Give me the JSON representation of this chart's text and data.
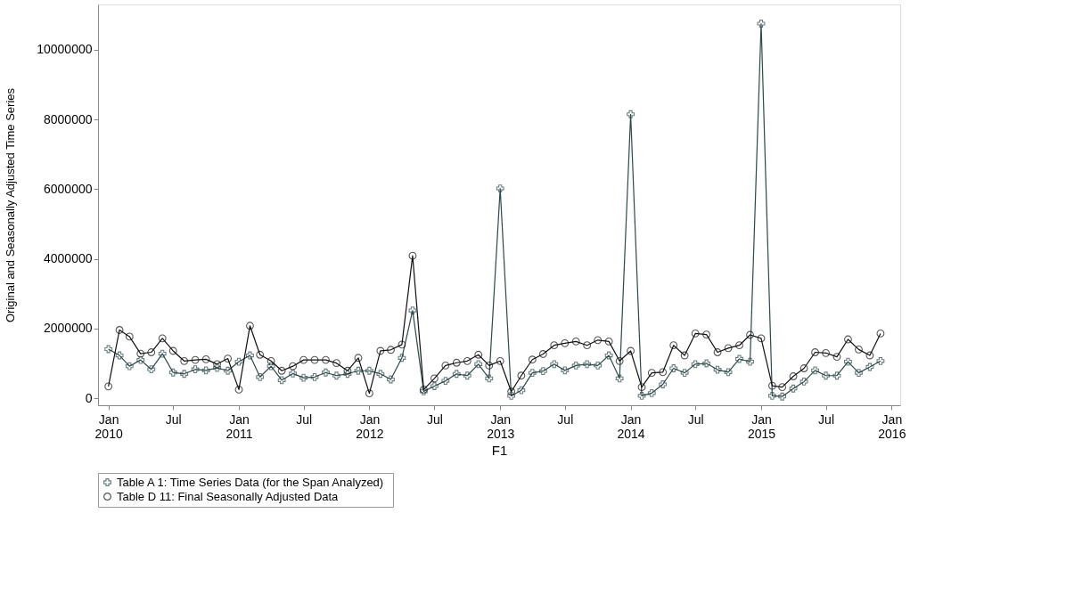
{
  "chart_data": {
    "type": "line",
    "xlabel": "F1",
    "ylabel": "Original and Seasonally Adjusted Time Series",
    "x": [
      "2010-01",
      "2010-02",
      "2010-03",
      "2010-04",
      "2010-05",
      "2010-06",
      "2010-07",
      "2010-08",
      "2010-09",
      "2010-10",
      "2010-11",
      "2010-12",
      "2011-01",
      "2011-02",
      "2011-03",
      "2011-04",
      "2011-05",
      "2011-06",
      "2011-07",
      "2011-08",
      "2011-09",
      "2011-10",
      "2011-11",
      "2011-12",
      "2012-01",
      "2012-02",
      "2012-03",
      "2012-04",
      "2012-05",
      "2012-06",
      "2012-07",
      "2012-08",
      "2012-09",
      "2012-10",
      "2012-11",
      "2012-12",
      "2013-01",
      "2013-02",
      "2013-03",
      "2013-04",
      "2013-05",
      "2013-06",
      "2013-07",
      "2013-08",
      "2013-09",
      "2013-10",
      "2013-11",
      "2013-12",
      "2014-01",
      "2014-02",
      "2014-03",
      "2014-04",
      "2014-05",
      "2014-06",
      "2014-07",
      "2014-08",
      "2014-09",
      "2014-10",
      "2014-11",
      "2014-12",
      "2015-01",
      "2015-02",
      "2015-03",
      "2015-04",
      "2015-05",
      "2015-06",
      "2015-07",
      "2015-08",
      "2015-09",
      "2015-10",
      "2015-11",
      "2015-12"
    ],
    "series": [
      {
        "name": "Table A 1:  Time Series Data (for the Span Analyzed)",
        "color": "#2e4a4a",
        "marker": "cross",
        "values": [
          1410000,
          1230000,
          920000,
          1100000,
          830000,
          1280000,
          740000,
          700000,
          830000,
          800000,
          870000,
          790000,
          1050000,
          1230000,
          610000,
          920000,
          520000,
          710000,
          590000,
          610000,
          740000,
          650000,
          700000,
          790000,
          790000,
          700000,
          540000,
          1160000,
          2520000,
          200000,
          350000,
          500000,
          700000,
          650000,
          980000,
          570000,
          6020000,
          70000,
          230000,
          730000,
          780000,
          980000,
          800000,
          940000,
          980000,
          940000,
          1230000,
          570000,
          8150000,
          70000,
          150000,
          400000,
          860000,
          730000,
          980000,
          1000000,
          820000,
          750000,
          1130000,
          1050000,
          10750000,
          70000,
          50000,
          280000,
          480000,
          800000,
          650000,
          650000,
          1050000,
          730000,
          900000,
          1070000
        ]
      },
      {
        "name": "Table D 11:  Final Seasonally Adjusted Data",
        "color": "#111111",
        "marker": "circle",
        "values": [
          340000,
          1960000,
          1770000,
          1280000,
          1320000,
          1720000,
          1360000,
          1070000,
          1100000,
          1120000,
          980000,
          1140000,
          250000,
          2080000,
          1250000,
          1070000,
          790000,
          920000,
          1100000,
          1100000,
          1100000,
          1010000,
          790000,
          1160000,
          140000,
          1360000,
          1390000,
          1540000,
          4090000,
          250000,
          570000,
          940000,
          1020000,
          1070000,
          1250000,
          940000,
          1070000,
          190000,
          650000,
          1110000,
          1270000,
          1520000,
          1580000,
          1630000,
          1520000,
          1670000,
          1630000,
          1070000,
          1360000,
          320000,
          730000,
          750000,
          1520000,
          1230000,
          1860000,
          1830000,
          1320000,
          1440000,
          1520000,
          1820000,
          1720000,
          360000,
          320000,
          630000,
          860000,
          1320000,
          1300000,
          1190000,
          1690000,
          1400000,
          1230000,
          1860000
        ]
      }
    ],
    "xlim": [
      "2009-12-03",
      "2016-01-25"
    ],
    "xticks": [
      {
        "value": "2010-01",
        "label": "Jan 2010"
      },
      {
        "value": "2010-07",
        "label": "Jul"
      },
      {
        "value": "2011-01",
        "label": "Jan 2011"
      },
      {
        "value": "2011-07",
        "label": "Jul"
      },
      {
        "value": "2012-01",
        "label": "Jan 2012"
      },
      {
        "value": "2012-07",
        "label": "Jul"
      },
      {
        "value": "2013-01",
        "label": "Jan 2013"
      },
      {
        "value": "2013-07",
        "label": "Jul"
      },
      {
        "value": "2014-01",
        "label": "Jan 2014"
      },
      {
        "value": "2014-07",
        "label": "Jul"
      },
      {
        "value": "2015-01",
        "label": "Jan 2015"
      },
      {
        "value": "2015-07",
        "label": "Jul"
      },
      {
        "value": "2016-01",
        "label": "Jan 2016"
      }
    ],
    "ylim": [
      -200000,
      11300000
    ],
    "yticks": [
      0,
      2000000,
      4000000,
      6000000,
      8000000,
      10000000
    ],
    "grid": false,
    "legend": "bottom",
    "line_style": "solid"
  }
}
